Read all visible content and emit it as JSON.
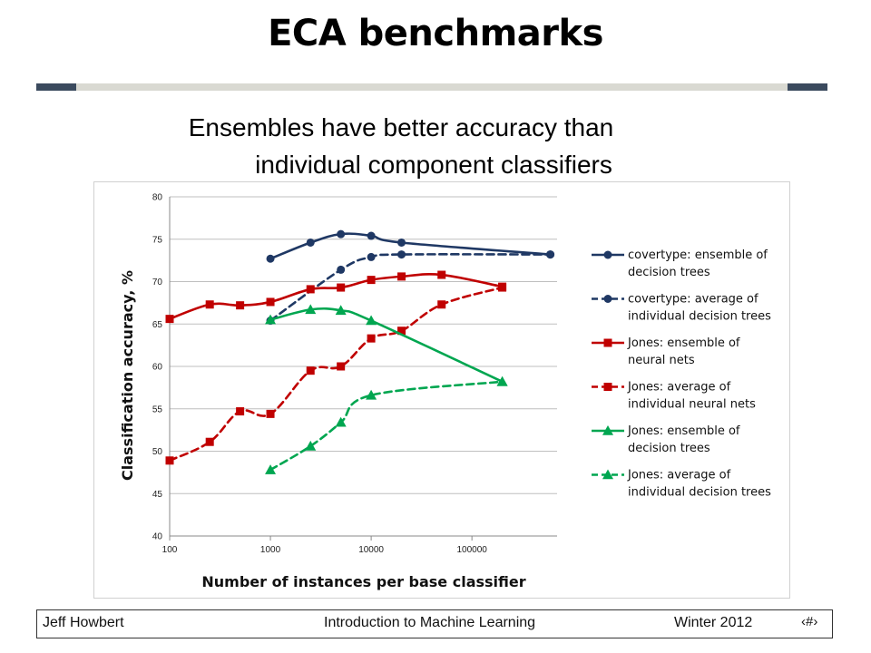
{
  "slide": {
    "title": "ECA benchmarks",
    "subtitle_line1": "Ensembles have better accuracy than",
    "subtitle_line2": "individual component classifiers"
  },
  "footer": {
    "author": "Jeff Howbert",
    "course": "Introduction to Machine Learning",
    "term": "Winter 2012",
    "page_symbol": "‹#›"
  },
  "chart_data": {
    "type": "line",
    "xlabel": "Number of instances per base classifier",
    "ylabel": "Classification accuracy, %",
    "x_scale": "log",
    "xlim": [
      100,
      700000
    ],
    "ylim": [
      40,
      80
    ],
    "x_ticks": [
      "100",
      "1000",
      "10000",
      "100000"
    ],
    "y_ticks": [
      "40",
      "45",
      "50",
      "55",
      "60",
      "65",
      "70",
      "75",
      "80"
    ],
    "grid": "horizontal",
    "legend_position": "right",
    "series": [
      {
        "name": "covertype: ensemble of decision trees",
        "color": "#1f3864",
        "dash": false,
        "marker": "circle",
        "x": [
          1000,
          2500,
          5000,
          10000,
          20000,
          600000
        ],
        "y": [
          72.7,
          74.6,
          75.6,
          75.4,
          74.6,
          73.2
        ]
      },
      {
        "name": "covertype: average of individual decision trees",
        "color": "#1f3864",
        "dash": true,
        "marker": "circle",
        "x": [
          1000,
          5000,
          10000,
          20000,
          600000
        ],
        "y": [
          65.4,
          71.4,
          72.9,
          73.2,
          73.2
        ]
      },
      {
        "name": "Jones: ensemble of neural nets",
        "color": "#c00000",
        "dash": false,
        "marker": "square",
        "x": [
          100,
          250,
          500,
          1000,
          2500,
          5000,
          10000,
          20000,
          50000,
          200000
        ],
        "y": [
          65.6,
          67.3,
          67.2,
          67.6,
          69.1,
          69.3,
          70.2,
          70.6,
          70.8,
          69.4
        ]
      },
      {
        "name": "Jones: average of individual neural nets",
        "color": "#c00000",
        "dash": true,
        "marker": "square",
        "x": [
          100,
          250,
          500,
          1000,
          2500,
          5000,
          10000,
          20000,
          50000,
          200000
        ],
        "y": [
          48.9,
          51.1,
          54.7,
          54.4,
          59.5,
          60.0,
          63.3,
          64.2,
          67.3,
          69.3
        ]
      },
      {
        "name": "Jones: ensemble of decision trees",
        "color": "#00a650",
        "dash": false,
        "marker": "triangle",
        "x": [
          1000,
          2500,
          5000,
          10000,
          200000
        ],
        "y": [
          65.5,
          66.7,
          66.6,
          65.4,
          58.2
        ]
      },
      {
        "name": "Jones: average of individual decision trees",
        "color": "#00a650",
        "dash": true,
        "marker": "triangle",
        "x": [
          1000,
          2500,
          5000,
          10000,
          200000
        ],
        "y": [
          47.8,
          50.6,
          53.4,
          56.6,
          58.2
        ]
      }
    ],
    "legend_lines": [
      [
        "covertype: ensemble of",
        "decision trees"
      ],
      [
        "covertype: average of",
        "individual decision trees"
      ],
      [
        "Jones: ensemble of",
        "neural nets"
      ],
      [
        "Jones: average of",
        "individual neural nets"
      ],
      [
        "Jones: ensemble of",
        "decision trees"
      ],
      [
        "Jones: average of",
        "individual decision trees"
      ]
    ]
  }
}
